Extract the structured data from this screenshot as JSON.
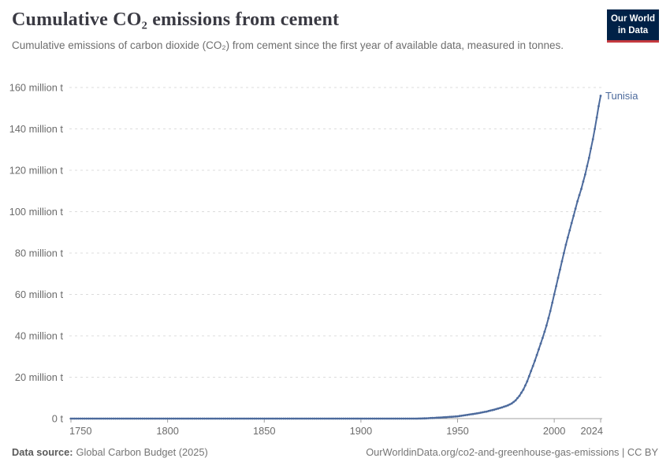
{
  "header": {
    "title": "Cumulative CO₂ emissions from cement",
    "subtitle": "Cumulative emissions of carbon dioxide (CO₂) from cement since the first year of available data, measured in tonnes.",
    "logo": {
      "line1": "Our World",
      "line2": "in Data"
    }
  },
  "footer": {
    "source_label": "Data source:",
    "source_value": "Global Carbon Budget (2025)",
    "credit": "OurWorldinData.org/co2-and-greenhouse-gas-emissions | CC BY"
  },
  "colors": {
    "series_blue": "#4c6a9c",
    "logo_navy": "#002147",
    "logo_red": "#c53a3f",
    "grid": "#dcdcdc",
    "axis": "#a1a1a1",
    "tick_text": "#6b6b6b"
  },
  "chart_data": {
    "type": "line",
    "title": "Cumulative CO₂ emissions from cement",
    "unit": "tonnes (values below in million tonnes)",
    "xlabel": "",
    "ylabel": "",
    "xlim": [
      1750,
      2024
    ],
    "ylim": [
      0,
      160
    ],
    "grid": "horizontal dashed",
    "legend_position": "end-of-line label",
    "xticks": [
      {
        "v": 1750,
        "label": "1750"
      },
      {
        "v": 1800,
        "label": "1800"
      },
      {
        "v": 1850,
        "label": "1850"
      },
      {
        "v": 1900,
        "label": "1900"
      },
      {
        "v": 1950,
        "label": "1950"
      },
      {
        "v": 2000,
        "label": "2000"
      },
      {
        "v": 2024,
        "label": "2024"
      }
    ],
    "yticks": [
      {
        "v": 0,
        "label": "0 t"
      },
      {
        "v": 20,
        "label": "20 million t"
      },
      {
        "v": 40,
        "label": "40 million t"
      },
      {
        "v": 60,
        "label": "60 million t"
      },
      {
        "v": 80,
        "label": "80 million t"
      },
      {
        "v": 100,
        "label": "100 million t"
      },
      {
        "v": 120,
        "label": "120 million t"
      },
      {
        "v": 140,
        "label": "140 million t"
      },
      {
        "v": 160,
        "label": "160 million t"
      }
    ],
    "series": [
      {
        "name": "Tunisia",
        "color": "#4c6a9c",
        "marker_every_year": true,
        "points": [
          [
            1750,
            0
          ],
          [
            1800,
            0
          ],
          [
            1850,
            0
          ],
          [
            1900,
            0
          ],
          [
            1925,
            0
          ],
          [
            1930,
            0.02
          ],
          [
            1931,
            0.05
          ],
          [
            1935,
            0.2
          ],
          [
            1940,
            0.45
          ],
          [
            1945,
            0.75
          ],
          [
            1950,
            1.1
          ],
          [
            1955,
            1.8
          ],
          [
            1960,
            2.5
          ],
          [
            1965,
            3.4
          ],
          [
            1970,
            4.6
          ],
          [
            1973,
            5.4
          ],
          [
            1976,
            6.4
          ],
          [
            1978,
            7.3
          ],
          [
            1980,
            8.8
          ],
          [
            1982,
            11
          ],
          [
            1984,
            14
          ],
          [
            1986,
            18
          ],
          [
            1988,
            23
          ],
          [
            1990,
            28
          ],
          [
            1992,
            33.5
          ],
          [
            1994,
            39
          ],
          [
            1996,
            45
          ],
          [
            1998,
            52
          ],
          [
            2000,
            60
          ],
          [
            2002,
            68
          ],
          [
            2004,
            76
          ],
          [
            2006,
            84
          ],
          [
            2008,
            91
          ],
          [
            2010,
            98
          ],
          [
            2012,
            105
          ],
          [
            2014,
            111
          ],
          [
            2016,
            118
          ],
          [
            2018,
            126
          ],
          [
            2020,
            135
          ],
          [
            2021,
            140
          ],
          [
            2022,
            145.5
          ],
          [
            2023,
            151
          ],
          [
            2024,
            156
          ]
        ]
      }
    ]
  }
}
